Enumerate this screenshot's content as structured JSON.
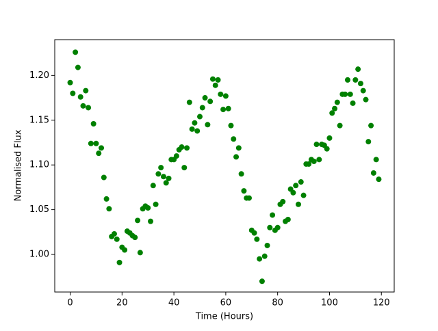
{
  "chart_data": {
    "type": "scatter",
    "x_label": "Time (Hours)",
    "y_label": "Normalised Flux",
    "color": "#008000",
    "x": [
      0,
      1,
      2,
      3,
      4,
      5,
      6,
      7,
      8,
      9,
      10,
      11,
      12,
      13,
      14,
      15,
      16,
      17,
      18,
      19,
      20,
      21,
      22,
      23,
      24,
      25,
      26,
      27,
      28,
      29,
      30,
      31,
      32,
      33,
      34,
      35,
      36,
      37,
      38,
      39,
      40,
      41,
      42,
      43,
      44,
      45,
      46,
      47,
      48,
      49,
      50,
      51,
      52,
      53,
      54,
      55,
      56,
      57,
      58,
      59,
      60,
      61,
      62,
      63,
      64,
      65,
      66,
      67,
      68,
      69,
      70,
      71,
      72,
      73,
      74,
      75,
      76,
      77,
      78,
      79,
      80,
      81,
      82,
      83,
      84,
      85,
      86,
      87,
      88,
      89,
      90,
      91,
      92,
      93,
      94,
      95,
      96,
      97,
      98,
      99,
      100,
      101,
      102,
      103,
      104,
      105,
      106,
      107,
      108,
      109,
      110,
      111,
      112,
      113,
      114,
      115,
      116,
      117,
      118,
      119
    ],
    "values": [
      1.192,
      1.18,
      1.226,
      1.209,
      1.176,
      1.166,
      1.183,
      1.164,
      1.124,
      1.146,
      1.124,
      1.113,
      1.119,
      1.086,
      1.062,
      1.051,
      1.02,
      1.023,
      1.017,
      0.991,
      1.008,
      1.005,
      1.026,
      1.024,
      1.021,
      1.019,
      1.038,
      1.002,
      1.051,
      1.054,
      1.052,
      1.037,
      1.077,
      1.056,
      1.09,
      1.097,
      1.087,
      1.08,
      1.085,
      1.106,
      1.106,
      1.11,
      1.117,
      1.12,
      1.097,
      1.119,
      1.17,
      1.14,
      1.147,
      1.138,
      1.154,
      1.164,
      1.175,
      1.145,
      1.171,
      1.196,
      1.189,
      1.195,
      1.179,
      1.162,
      1.177,
      1.163,
      1.144,
      1.129,
      1.109,
      1.119,
      1.09,
      1.071,
      1.063,
      1.063,
      1.027,
      1.024,
      1.017,
      0.995,
      0.97,
      0.998,
      1.01,
      1.03,
      1.044,
      1.027,
      1.03,
      1.056,
      1.059,
      1.037,
      1.039,
      1.073,
      1.069,
      1.077,
      1.056,
      1.081,
      1.066,
      1.101,
      1.101,
      1.106,
      1.104,
      1.123,
      1.106,
      1.123,
      1.122,
      1.118,
      1.13,
      1.158,
      1.163,
      1.17,
      1.144,
      1.179,
      1.179,
      1.195,
      1.179,
      1.169,
      1.195,
      1.207,
      1.191,
      1.183,
      1.173,
      1.126,
      1.144,
      1.091,
      1.106,
      1.084
    ],
    "xlim": [
      -5.95,
      124.95
    ],
    "xticks": [
      0,
      20,
      40,
      60,
      80,
      100,
      120
    ],
    "ylim": [
      0.958,
      1.24
    ],
    "yticks": [
      {
        "value": 1.0,
        "label": "1.00"
      },
      1.05,
      {
        "value": 1.1,
        "label": "1.10"
      },
      1.15,
      {
        "value": 1.2,
        "label": "1.20"
      }
    ]
  }
}
